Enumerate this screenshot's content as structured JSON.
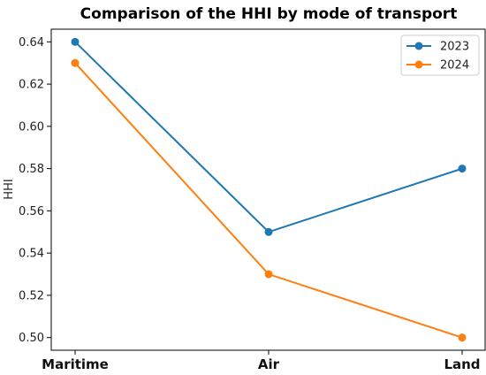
{
  "chart_data": {
    "type": "line",
    "title": "Comparison of the HHI by mode of transport",
    "xlabel": "",
    "ylabel": "HHI",
    "categories": [
      "Maritime",
      "Air",
      "Land"
    ],
    "yticks": [
      "0.50",
      "0.52",
      "0.54",
      "0.56",
      "0.58",
      "0.60",
      "0.62",
      "0.64"
    ],
    "ylim": [
      0.494,
      0.646
    ],
    "grid": false,
    "legend": "top-right",
    "series": [
      {
        "name": "2023",
        "color": "#1f77b4",
        "values": [
          0.64,
          0.55,
          0.58
        ]
      },
      {
        "name": "2024",
        "color": "#ff7f0e",
        "values": [
          0.63,
          0.53,
          0.5
        ]
      }
    ]
  }
}
